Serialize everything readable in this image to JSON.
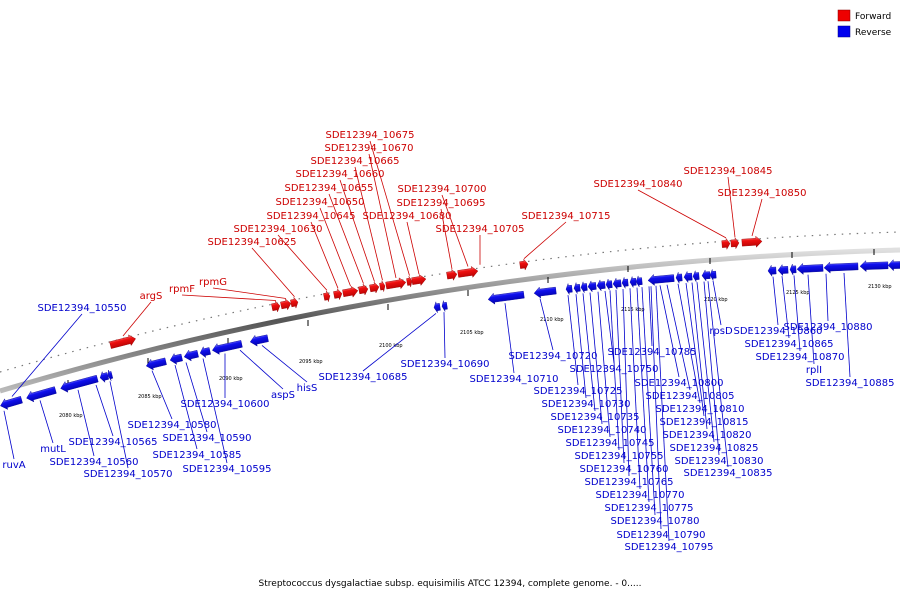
{
  "legend": {
    "forward": {
      "label": "Forward",
      "color": "#ee0000"
    },
    "reverse": {
      "label": "Reverse",
      "color": "#0000ee"
    }
  },
  "caption": "Streptococcus dysgalactiae subsp. equisimilis ATCC 12394, complete genome. - 0.....",
  "ticks": [
    "2080 kbp",
    "2085 kbp",
    "2090 kbp",
    "2095 kbp",
    "2100 kbp",
    "2105 kbp",
    "2110 kbp",
    "2115 kbp",
    "2120 kbp",
    "2125 kbp",
    "2130 kbp"
  ],
  "forward_genes": [
    "argS",
    "rpmF",
    "rpmG",
    "SDE12394_10625",
    "SDE12394_10630",
    "SDE12394_10645",
    "SDE12394_10650",
    "SDE12394_10655",
    "SDE12394_10660",
    "SDE12394_10665",
    "SDE12394_10670",
    "SDE12394_10675",
    "SDE12394_10680",
    "SDE12394_10695",
    "SDE12394_10700",
    "SDE12394_10705",
    "SDE12394_10715",
    "SDE12394_10840",
    "SDE12394_10845",
    "SDE12394_10850"
  ],
  "reverse_genes": [
    "SDE12394_10550",
    "ruvA",
    "mutL",
    "SDE12394_10560",
    "SDE12394_10565",
    "SDE12394_10570",
    "SDE12394_10580",
    "SDE12394_10585",
    "SDE12394_10590",
    "SDE12394_10595",
    "SDE12394_10600",
    "aspS",
    "hisS",
    "SDE12394_10685",
    "SDE12394_10690",
    "SDE12394_10710",
    "SDE12394_10720",
    "SDE12394_10725",
    "SDE12394_10730",
    "SDE12394_10735",
    "SDE12394_10740",
    "SDE12394_10745",
    "SDE12394_10750",
    "SDE12394_10755",
    "SDE12394_10760",
    "SDE12394_10765",
    "SDE12394_10770",
    "SDE12394_10775",
    "SDE12394_10780",
    "SDE12394_10785",
    "SDE12394_10790",
    "SDE12394_10795",
    "SDE12394_10800",
    "SDE12394_10805",
    "SDE12394_10810",
    "SDE12394_10815",
    "SDE12394_10820",
    "SDE12394_10825",
    "SDE12394_10830",
    "SDE12394_10835",
    "rpsD",
    "SDE12394_10860",
    "SDE12394_10865",
    "SDE12394_10870",
    "rplI",
    "SDE12394_10880",
    "SDE12394_10885"
  ]
}
